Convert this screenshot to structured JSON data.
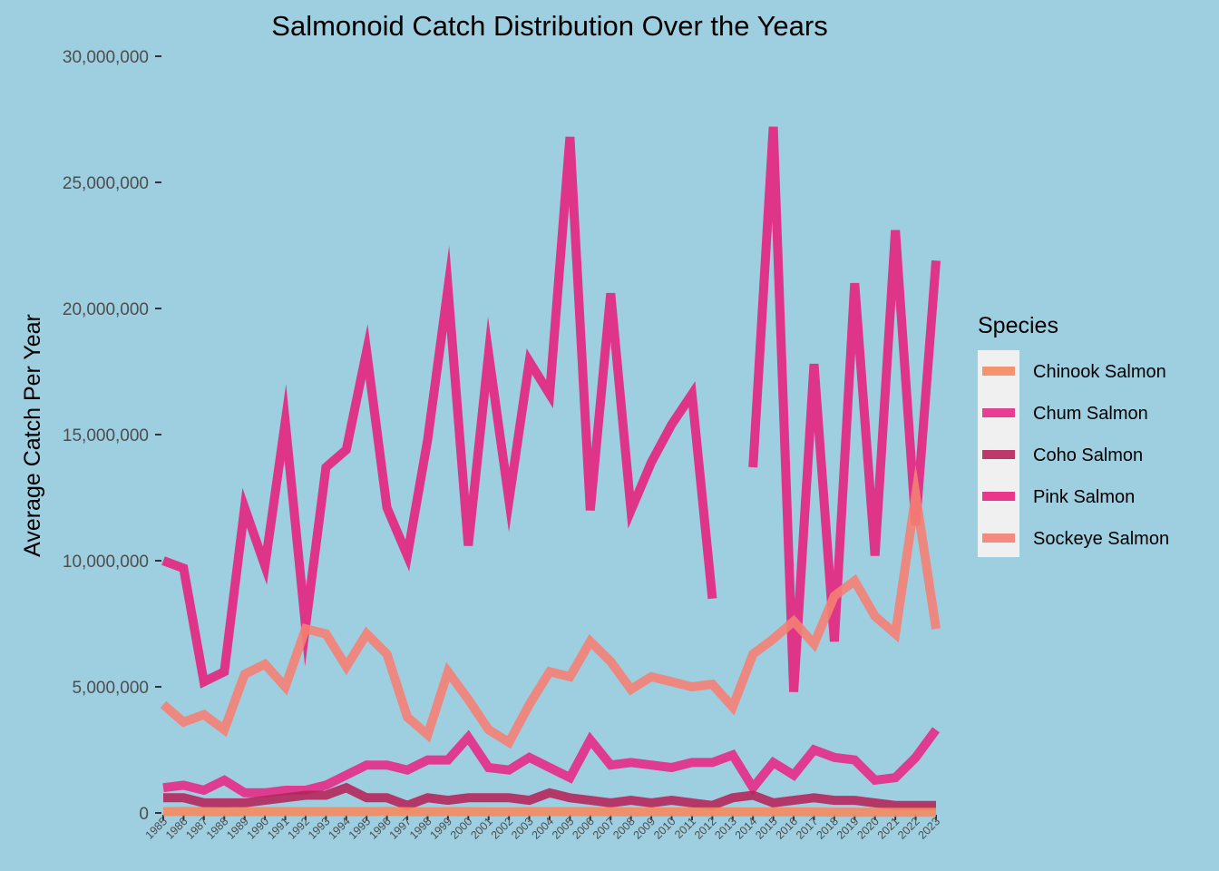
{
  "chart_data": {
    "type": "line",
    "title": "Salmonoid Catch Distribution Over the Years",
    "xlabel": "",
    "ylabel": "Average Catch Per Year",
    "x": [
      "1985",
      "1986",
      "1987",
      "1988",
      "1989",
      "1990",
      "1991",
      "1992",
      "1993",
      "1994",
      "1995",
      "1996",
      "1997",
      "1998",
      "1999",
      "2000",
      "2001",
      "2002",
      "2003",
      "2004",
      "2005",
      "2006",
      "2007",
      "2008",
      "2009",
      "2010",
      "2011",
      "2012",
      "2013",
      "2014",
      "2015",
      "2016",
      "2017",
      "2018",
      "2019",
      "2020",
      "2021",
      "2022",
      "2023"
    ],
    "ylim": [
      0,
      30000000
    ],
    "yticks": [
      0,
      5000000,
      10000000,
      15000000,
      20000000,
      25000000,
      30000000
    ],
    "ytick_labels": [
      "0",
      "5,000,000",
      "10,000,000",
      "15,000,000",
      "20,000,000",
      "25,000,000",
      "30,000,000"
    ],
    "grid": false,
    "legend": {
      "title": "Species",
      "position": "right",
      "background": "#f0f0f0"
    },
    "background": "#9ecfe0",
    "series": [
      {
        "name": "Pink Salmon",
        "color": "#e6247f",
        "values": [
          10000000,
          9700000,
          5200000,
          5600000,
          12100000,
          9800000,
          15500000,
          7400000,
          13700000,
          14400000,
          18300000,
          12100000,
          10200000,
          14800000,
          20800000,
          10600000,
          18200000,
          12400000,
          17900000,
          16600000,
          26800000,
          12000000,
          20600000,
          12000000,
          13900000,
          15400000,
          16600000,
          8500000,
          null,
          13700000,
          27200000,
          4800000,
          17800000,
          6800000,
          21000000,
          10200000,
          23100000,
          11400000,
          21900000
        ]
      },
      {
        "name": "Sockeye Salmon",
        "color": "#f47f74",
        "values": [
          4300000,
          3600000,
          3900000,
          3300000,
          5500000,
          5900000,
          5000000,
          7300000,
          7100000,
          5800000,
          7100000,
          6300000,
          3800000,
          3100000,
          5600000,
          4500000,
          3300000,
          2800000,
          4300000,
          5600000,
          5400000,
          6800000,
          6000000,
          4900000,
          5400000,
          5200000,
          5000000,
          5100000,
          4200000,
          6300000,
          6900000,
          7600000,
          6700000,
          8600000,
          9200000,
          7800000,
          7100000,
          12600000,
          7300000
        ]
      },
      {
        "name": "Chum Salmon",
        "color": "#e62a87",
        "values": [
          1000000,
          1100000,
          900000,
          1300000,
          800000,
          800000,
          900000,
          900000,
          1100000,
          1500000,
          1900000,
          1900000,
          1700000,
          2100000,
          2100000,
          3000000,
          1800000,
          1700000,
          2200000,
          1800000,
          1400000,
          2900000,
          1900000,
          2000000,
          1900000,
          1800000,
          2000000,
          2000000,
          2300000,
          1000000,
          2000000,
          1500000,
          2500000,
          2200000,
          2100000,
          1300000,
          1400000,
          2200000,
          3300000
        ]
      },
      {
        "name": "Coho Salmon",
        "color": "#b5265c",
        "values": [
          600000,
          600000,
          400000,
          400000,
          400000,
          500000,
          600000,
          700000,
          700000,
          1000000,
          600000,
          600000,
          300000,
          600000,
          500000,
          600000,
          600000,
          600000,
          500000,
          800000,
          600000,
          500000,
          400000,
          500000,
          400000,
          500000,
          400000,
          300000,
          600000,
          700000,
          400000,
          500000,
          600000,
          500000,
          500000,
          400000,
          300000,
          300000,
          300000
        ]
      },
      {
        "name": "Chinook Salmon",
        "color": "#f4895f",
        "values": [
          50000,
          60000,
          50000,
          40000,
          50000,
          50000,
          50000,
          50000,
          50000,
          50000,
          50000,
          60000,
          50000,
          40000,
          50000,
          50000,
          40000,
          40000,
          50000,
          50000,
          50000,
          50000,
          50000,
          40000,
          40000,
          40000,
          40000,
          40000,
          40000,
          40000,
          40000,
          40000,
          40000,
          30000,
          30000,
          30000,
          30000,
          30000,
          30000
        ]
      }
    ],
    "legend_order": [
      "Chinook Salmon",
      "Chum Salmon",
      "Coho Salmon",
      "Pink Salmon",
      "Sockeye Salmon"
    ]
  }
}
